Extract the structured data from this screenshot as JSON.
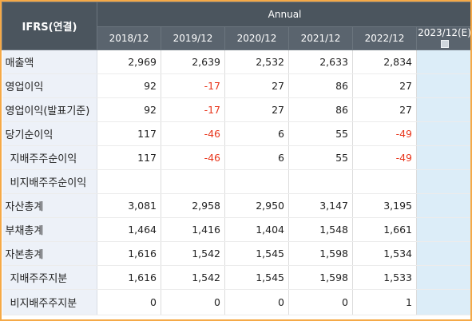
{
  "header": {
    "first_label": "IFRS(연결)",
    "group_label": "Annual",
    "years": [
      "2018/12",
      "2019/12",
      "2020/12",
      "2021/12",
      "2022/12",
      "2023/12(E)"
    ]
  },
  "rows": [
    {
      "label": "매출액",
      "indent": false,
      "values": [
        "2,969",
        "2,639",
        "2,532",
        "2,633",
        "2,834",
        ""
      ]
    },
    {
      "label": "영업이익",
      "indent": false,
      "values": [
        "92",
        "-17",
        "27",
        "86",
        "27",
        ""
      ]
    },
    {
      "label": "영업이익(발표기준)",
      "indent": false,
      "values": [
        "92",
        "-17",
        "27",
        "86",
        "27",
        ""
      ]
    },
    {
      "label": "당기순이익",
      "indent": false,
      "values": [
        "117",
        "-46",
        "6",
        "55",
        "-49",
        ""
      ]
    },
    {
      "label": "지배주주순이익",
      "indent": true,
      "values": [
        "117",
        "-46",
        "6",
        "55",
        "-49",
        ""
      ]
    },
    {
      "label": "비지배주주순이익",
      "indent": true,
      "values": [
        "",
        "",
        "",
        "",
        "",
        ""
      ]
    },
    {
      "label": "자산총계",
      "indent": false,
      "values": [
        "3,081",
        "2,958",
        "2,950",
        "3,147",
        "3,195",
        ""
      ]
    },
    {
      "label": "부채총계",
      "indent": false,
      "values": [
        "1,464",
        "1,416",
        "1,404",
        "1,548",
        "1,661",
        ""
      ]
    },
    {
      "label": "자본총계",
      "indent": false,
      "values": [
        "1,616",
        "1,542",
        "1,545",
        "1,598",
        "1,534",
        ""
      ]
    },
    {
      "label": "지배주주지분",
      "indent": true,
      "values": [
        "1,616",
        "1,542",
        "1,545",
        "1,598",
        "1,533",
        ""
      ]
    },
    {
      "label": "비지배주주지분",
      "indent": true,
      "values": [
        "0",
        "0",
        "0",
        "0",
        "1",
        ""
      ]
    }
  ],
  "icons": {
    "estimate_marker": "info-box-icon"
  },
  "colors": {
    "header_bg": "#4b555e",
    "label_bg": "#edf1f8",
    "estimate_bg": "#dcedf8",
    "negative": "#e8361c",
    "frame": "#f5a947"
  }
}
